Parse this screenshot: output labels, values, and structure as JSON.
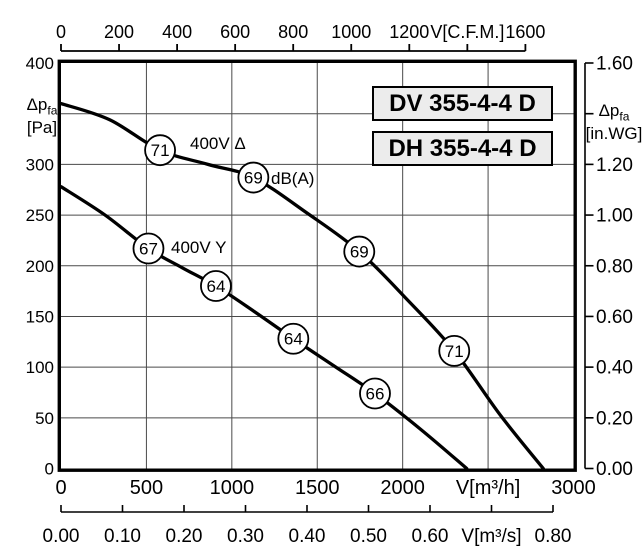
{
  "chart_data": {
    "type": "line",
    "title_boxes": [
      "DV 355-4-4 D",
      "DH 355-4-4 D"
    ],
    "marker_unit": "dB(A)",
    "x_axis": {
      "label": "V[m³/h]",
      "min": 0,
      "max": 3000,
      "grid_step": 500,
      "ticks": [
        {
          "v": 0,
          "t": "0"
        },
        {
          "v": 500,
          "t": "500"
        },
        {
          "v": 1000,
          "t": "1000"
        },
        {
          "v": 1500,
          "t": "1500"
        },
        {
          "v": 2000,
          "t": "2000"
        },
        {
          "v": 2500,
          "t": "V[m³/h]"
        },
        {
          "v": 3000,
          "t": "3000"
        }
      ]
    },
    "x_axis_cfm": {
      "label": "V[C.F.M.]",
      "min": 0,
      "max": 1600,
      "m3h_per_unit": 1.699,
      "ticks": [
        {
          "v": 0,
          "t": "0"
        },
        {
          "v": 200,
          "t": "200"
        },
        {
          "v": 400,
          "t": "400"
        },
        {
          "v": 600,
          "t": "600"
        },
        {
          "v": 800,
          "t": "800"
        },
        {
          "v": 1000,
          "t": "1000"
        },
        {
          "v": 1200,
          "t": "1200"
        },
        {
          "v": 1400,
          "t": "V[C.F.M.]"
        },
        {
          "v": 1600,
          "t": "1600"
        }
      ]
    },
    "x_axis_m3s": {
      "label": "V[m³/s]",
      "min": 0,
      "max": 0.8,
      "m3h_per_unit": 3600,
      "ticks": [
        {
          "v": 0.0,
          "t": "0.00"
        },
        {
          "v": 0.1,
          "t": "0.10"
        },
        {
          "v": 0.2,
          "t": "0.20"
        },
        {
          "v": 0.3,
          "t": "0.30"
        },
        {
          "v": 0.4,
          "t": "0.40"
        },
        {
          "v": 0.5,
          "t": "0.50"
        },
        {
          "v": 0.6,
          "t": "0.60"
        },
        {
          "v": 0.7,
          "t": "V[m³/s]"
        },
        {
          "v": 0.8,
          "t": "0.80"
        }
      ]
    },
    "y_axis_left": {
      "sym": "Δp",
      "sub": "fa",
      "unit": "[Pa]",
      "min": 0,
      "max": 400,
      "grid_step": 50,
      "ticks": [
        {
          "v": 400,
          "t": "400"
        },
        {
          "v": 350,
          "t": ""
        },
        {
          "v": 300,
          "t": "300"
        },
        {
          "v": 250,
          "t": "250"
        },
        {
          "v": 200,
          "t": "200"
        },
        {
          "v": 150,
          "t": "150"
        },
        {
          "v": 100,
          "t": "100"
        },
        {
          "v": 50,
          "t": "50"
        },
        {
          "v": 0,
          "t": "0"
        }
      ]
    },
    "y_axis_right": {
      "sym": "Δp",
      "sub": "fa",
      "unit": "[in.WG]",
      "min": 0,
      "max": 1.6,
      "ticks": [
        {
          "v": 1.6,
          "t": "1.60"
        },
        {
          "v": 1.4,
          "t": ""
        },
        {
          "v": 1.2,
          "t": "1.20"
        },
        {
          "v": 1.0,
          "t": "1.00"
        },
        {
          "v": 0.8,
          "t": "0.80"
        },
        {
          "v": 0.6,
          "t": "0.60"
        },
        {
          "v": 0.4,
          "t": "0.40"
        },
        {
          "v": 0.2,
          "t": "0.20"
        },
        {
          "v": 0.0,
          "t": "0.00"
        }
      ]
    },
    "series": [
      {
        "name": "400V Δ",
        "points": [
          [
            0,
            360
          ],
          [
            285,
            344
          ],
          [
            580,
            314
          ],
          [
            860,
            300
          ],
          [
            1126,
            287
          ],
          [
            1440,
            252
          ],
          [
            1746,
            214
          ],
          [
            2030,
            166
          ],
          [
            2302,
            116
          ],
          [
            2570,
            53
          ],
          [
            2823,
            0
          ]
        ],
        "markers": [
          {
            "v": 580,
            "pa": 314,
            "label": "71"
          },
          {
            "v": 1126,
            "pa": 287,
            "label": "69"
          },
          {
            "v": 1746,
            "pa": 214,
            "label": "69"
          },
          {
            "v": 2302,
            "pa": 116,
            "label": "71"
          }
        ]
      },
      {
        "name": "400V Y",
        "points": [
          [
            0,
            278
          ],
          [
            258,
            250
          ],
          [
            512,
            217
          ],
          [
            710,
            198
          ],
          [
            907,
            180
          ],
          [
            1130,
            155
          ],
          [
            1360,
            128
          ],
          [
            1600,
            101
          ],
          [
            1838,
            74
          ],
          [
            2110,
            38
          ],
          [
            2375,
            0
          ]
        ],
        "markers": [
          {
            "v": 512,
            "pa": 217,
            "label": "67"
          },
          {
            "v": 907,
            "pa": 180,
            "label": "64"
          },
          {
            "v": 1360,
            "pa": 128,
            "label": "64"
          },
          {
            "v": 1838,
            "pa": 74,
            "label": "66"
          }
        ]
      }
    ],
    "colors": {
      "curve": "#000000",
      "grid": "#4a4a4a",
      "axis": "#000000",
      "box_bg": "#ececec",
      "background": "#ffffff"
    }
  }
}
